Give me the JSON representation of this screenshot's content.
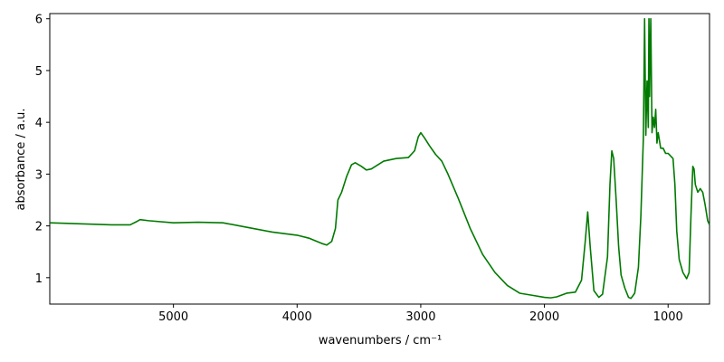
{
  "chart_data": {
    "type": "line",
    "xlabel": "wavenumbers / cm⁻¹",
    "ylabel": "absorbance / a.u.",
    "xlim": [
      6000,
      665
    ],
    "ylim": [
      0.49,
      6.1
    ],
    "xticks": [
      5000,
      4000,
      3000,
      2000,
      1000
    ],
    "yticks": [
      1,
      2,
      3,
      4,
      5,
      6
    ],
    "x": [
      6000,
      5500,
      5350,
      5300,
      5270,
      5200,
      5000,
      4800,
      4600,
      4400,
      4200,
      4000,
      3900,
      3800,
      3760,
      3720,
      3690,
      3670,
      3640,
      3600,
      3560,
      3530,
      3480,
      3440,
      3400,
      3300,
      3200,
      3100,
      3050,
      3020,
      3000,
      2970,
      2930,
      2880,
      2830,
      2780,
      2700,
      2600,
      2500,
      2400,
      2300,
      2200,
      2100,
      2000,
      1950,
      1900,
      1820,
      1750,
      1700,
      1670,
      1650,
      1630,
      1600,
      1560,
      1530,
      1490,
      1470,
      1455,
      1440,
      1420,
      1400,
      1380,
      1350,
      1320,
      1300,
      1270,
      1240,
      1220,
      1200,
      1190,
      1180,
      1170,
      1160,
      1155,
      1150,
      1140,
      1130,
      1120,
      1110,
      1100,
      1090,
      1080,
      1060,
      1040,
      1020,
      1000,
      980,
      960,
      945,
      930,
      910,
      880,
      850,
      830,
      815,
      800,
      790,
      780,
      760,
      740,
      720,
      700,
      680,
      665
    ],
    "series": [
      {
        "color": "#007a00",
        "values": [
          2.06,
          2.02,
          2.02,
          2.08,
          2.12,
          2.1,
          2.06,
          2.07,
          2.06,
          1.97,
          1.88,
          1.82,
          1.76,
          1.66,
          1.63,
          1.7,
          1.95,
          2.5,
          2.65,
          2.95,
          3.18,
          3.22,
          3.15,
          3.08,
          3.1,
          3.25,
          3.3,
          3.32,
          3.45,
          3.72,
          3.8,
          3.7,
          3.55,
          3.38,
          3.25,
          3.0,
          2.55,
          1.95,
          1.45,
          1.1,
          0.85,
          0.7,
          0.66,
          0.62,
          0.61,
          0.63,
          0.7,
          0.72,
          0.95,
          1.7,
          2.27,
          1.6,
          0.75,
          0.62,
          0.68,
          1.4,
          2.8,
          3.45,
          3.3,
          2.5,
          1.6,
          1.05,
          0.8,
          0.62,
          0.6,
          0.7,
          1.2,
          2.2,
          3.7,
          6.0,
          3.75,
          4.8,
          3.9,
          6.0,
          4.5,
          6.0,
          3.8,
          4.1,
          3.9,
          4.25,
          3.6,
          3.8,
          3.5,
          3.5,
          3.4,
          3.4,
          3.35,
          3.3,
          2.8,
          1.9,
          1.35,
          1.1,
          0.98,
          1.1,
          2.2,
          3.15,
          3.1,
          2.8,
          2.65,
          2.72,
          2.65,
          2.4,
          2.1,
          2.02
        ]
      }
    ]
  }
}
